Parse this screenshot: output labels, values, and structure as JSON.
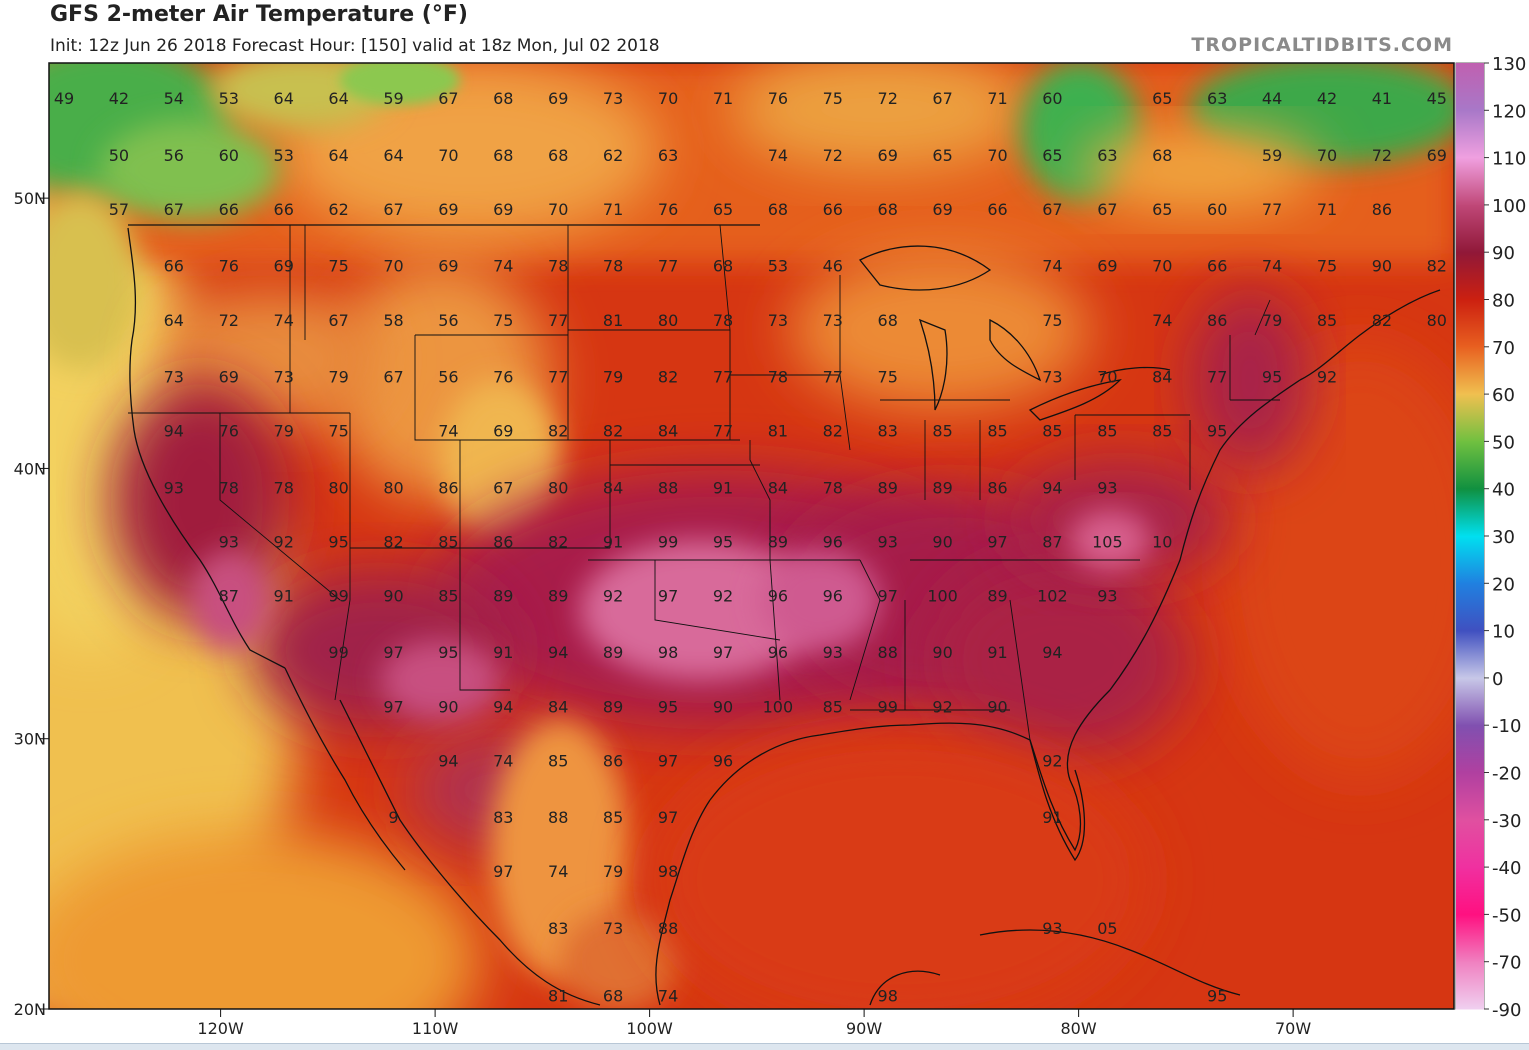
{
  "header": {
    "title": "GFS 2-meter Air Temperature (°F)",
    "subtitle": "Init: 12z Jun 26 2018   Forecast Hour: [150]   valid at 18z Mon, Jul 02 2018",
    "brand": "TROPICALTIDBITS.COM"
  },
  "map": {
    "lat_range": [
      20,
      55
    ],
    "lon_range": [
      -128,
      -62.5
    ],
    "lat_labels": [
      {
        "lat": 50,
        "text": "50N"
      },
      {
        "lat": 40,
        "text": "40N"
      },
      {
        "lat": 30,
        "text": "30N"
      },
      {
        "lat": 20,
        "text": "20N"
      }
    ],
    "lon_labels": [
      {
        "lon": -120,
        "text": "120W"
      },
      {
        "lon": -110,
        "text": "110W"
      },
      {
        "lon": -100,
        "text": "100W"
      },
      {
        "lon": -90,
        "text": "90W"
      },
      {
        "lon": -80,
        "text": "80W"
      },
      {
        "lon": -70,
        "text": "70W"
      }
    ],
    "temperature_rows": [
      {
        "lat": 53.7,
        "lon_start": -127.3,
        "values": [
          "49",
          "42",
          "54",
          "53",
          "64",
          "64",
          "59",
          "67",
          "68",
          "69",
          "73",
          "70",
          "71",
          "76",
          "75",
          "72",
          "67",
          "71",
          "60",
          "",
          "65",
          "63",
          "44",
          "42",
          "41",
          "45"
        ]
      },
      {
        "lat": 51.6,
        "lon_start": -127.3,
        "values": [
          "",
          "50",
          "56",
          "60",
          "53",
          "64",
          "64",
          "70",
          "68",
          "68",
          "62",
          "63",
          "",
          "74",
          "72",
          "69",
          "65",
          "70",
          "65",
          "63",
          "68",
          "",
          "59",
          "70",
          "72",
          "69"
        ]
      },
      {
        "lat": 49.6,
        "lon_start": -127.3,
        "values": [
          "",
          "57",
          "67",
          "66",
          "66",
          "62",
          "67",
          "69",
          "69",
          "70",
          "71",
          "76",
          "65",
          "68",
          "66",
          "68",
          "69",
          "66",
          "67",
          "67",
          "65",
          "60",
          "77",
          "71",
          "86",
          ""
        ]
      },
      {
        "lat": 47.5,
        "lon_start": -127.3,
        "values": [
          "",
          "",
          "66",
          "76",
          "69",
          "75",
          "70",
          "69",
          "74",
          "78",
          "78",
          "77",
          "68",
          "53",
          "46",
          "",
          "",
          "",
          "74",
          "69",
          "70",
          "66",
          "74",
          "75",
          "90",
          "82"
        ]
      },
      {
        "lat": 45.5,
        "lon_start": -127.3,
        "values": [
          "",
          "",
          "64",
          "72",
          "74",
          "67",
          "58",
          "56",
          "75",
          "77",
          "81",
          "80",
          "78",
          "73",
          "73",
          "68",
          "",
          "",
          "75",
          "",
          "74",
          "86",
          "79",
          "85",
          "82",
          "80"
        ]
      },
      {
        "lat": 43.4,
        "lon_start": -127.3,
        "values": [
          "",
          "",
          "73",
          "69",
          "73",
          "79",
          "67",
          "56",
          "76",
          "77",
          "79",
          "82",
          "77",
          "78",
          "77",
          "75",
          "",
          "",
          "73",
          "70",
          "84",
          "77",
          "95",
          "92",
          "",
          ""
        ]
      },
      {
        "lat": 41.4,
        "lon_start": -127.3,
        "values": [
          "",
          "",
          "94",
          "76",
          "79",
          "75",
          "",
          "74",
          "69",
          "82",
          "82",
          "84",
          "77",
          "81",
          "82",
          "83",
          "85",
          "85",
          "85",
          "85",
          "85",
          "95",
          "",
          "",
          "",
          ""
        ]
      },
      {
        "lat": 39.3,
        "lon_start": -127.3,
        "values": [
          "",
          "",
          "93",
          "78",
          "78",
          "80",
          "80",
          "86",
          "67",
          "80",
          "84",
          "88",
          "91",
          "84",
          "78",
          "89",
          "89",
          "86",
          "94",
          "93",
          "",
          "",
          "",
          "",
          "",
          ""
        ]
      },
      {
        "lat": 37.3,
        "lon_start": -127.3,
        "values": [
          "",
          "",
          "",
          "93",
          "92",
          "95",
          "82",
          "85",
          "86",
          "82",
          "91",
          "99",
          "95",
          "89",
          "96",
          "93",
          "90",
          "97",
          "87",
          "105",
          "10",
          "",
          "",
          "",
          "",
          ""
        ]
      },
      {
        "lat": 35.3,
        "lon_start": -127.3,
        "values": [
          "",
          "",
          "",
          "87",
          "91",
          "99",
          "90",
          "85",
          "89",
          "89",
          "92",
          "97",
          "92",
          "96",
          "96",
          "97",
          "100",
          "89",
          "102",
          "93",
          "",
          "",
          "",
          "",
          "",
          ""
        ]
      },
      {
        "lat": 33.2,
        "lon_start": -127.3,
        "values": [
          "",
          "",
          "",
          "",
          "",
          "99",
          "97",
          "95",
          "91",
          "94",
          "89",
          "98",
          "97",
          "96",
          "93",
          "88",
          "90",
          "91",
          "94",
          "",
          "",
          "",
          "",
          "",
          "",
          ""
        ]
      },
      {
        "lat": 31.2,
        "lon_start": -127.3,
        "values": [
          "",
          "",
          "",
          "",
          "",
          "",
          "97",
          "90",
          "94",
          "84",
          "89",
          "95",
          "90",
          "100",
          "85",
          "99",
          "92",
          "90",
          "",
          "",
          "",
          "",
          "",
          "",
          "",
          ""
        ]
      },
      {
        "lat": 29.2,
        "lon_start": -127.3,
        "values": [
          "",
          "",
          "",
          "",
          "",
          "",
          "",
          "94",
          "74",
          "85",
          "86",
          "97",
          "96",
          "",
          "",
          "",
          "",
          "",
          "92",
          "",
          "",
          "",
          "",
          "",
          "",
          ""
        ]
      },
      {
        "lat": 27.1,
        "lon_start": -127.3,
        "values": [
          "",
          "",
          "",
          "",
          "",
          "",
          "9",
          "",
          "83",
          "88",
          "85",
          "97",
          "",
          "",
          "",
          "",
          "",
          "",
          "91",
          "",
          "",
          "",
          "",
          "",
          "",
          ""
        ]
      },
      {
        "lat": 25.1,
        "lon_start": -127.3,
        "values": [
          "",
          "",
          "",
          "",
          "",
          "",
          "",
          "",
          "97",
          "74",
          "79",
          "98",
          "",
          "",
          "",
          "",
          "",
          "",
          "",
          "",
          "",
          "",
          "",
          "",
          "",
          ""
        ]
      },
      {
        "lat": 23.0,
        "lon_start": -127.3,
        "values": [
          "",
          "",
          "",
          "",
          "",
          "",
          "",
          "",
          "",
          "83",
          "73",
          "88",
          "",
          "",
          "",
          "",
          "",
          "",
          "93",
          "05",
          "",
          "",
          "",
          "",
          "",
          ""
        ]
      },
      {
        "lat": 20.5,
        "lon_start": -127.3,
        "values": [
          "",
          "",
          "",
          "",
          "",
          "",
          "",
          "",
          "",
          "81",
          "68",
          "74",
          "",
          "",
          "",
          "98",
          "",
          "",
          "",
          "",
          "",
          "95",
          "",
          "",
          "",
          ""
        ]
      }
    ]
  },
  "colorbar": {
    "labels": [
      "130",
      "120",
      "110",
      "100",
      "90",
      "80",
      "70",
      "60",
      "50",
      "40",
      "30",
      "20",
      "10",
      "0",
      "-10",
      "-20",
      "-30",
      "-40",
      "-50",
      "-70",
      "-90"
    ],
    "colors": [
      "#c060b0",
      "#a878c8",
      "#f0a0e0",
      "#c04878",
      "#901838",
      "#cc2010",
      "#e86020",
      "#f0c050",
      "#70c040",
      "#109040",
      "#00e0f0",
      "#2080e0",
      "#4050c0",
      "#c8c8e8",
      "#8050b0",
      "#b040a0",
      "#e050a0",
      "#f030a0",
      "#ff1080",
      "#f080c0",
      "#f0d0f0"
    ]
  }
}
